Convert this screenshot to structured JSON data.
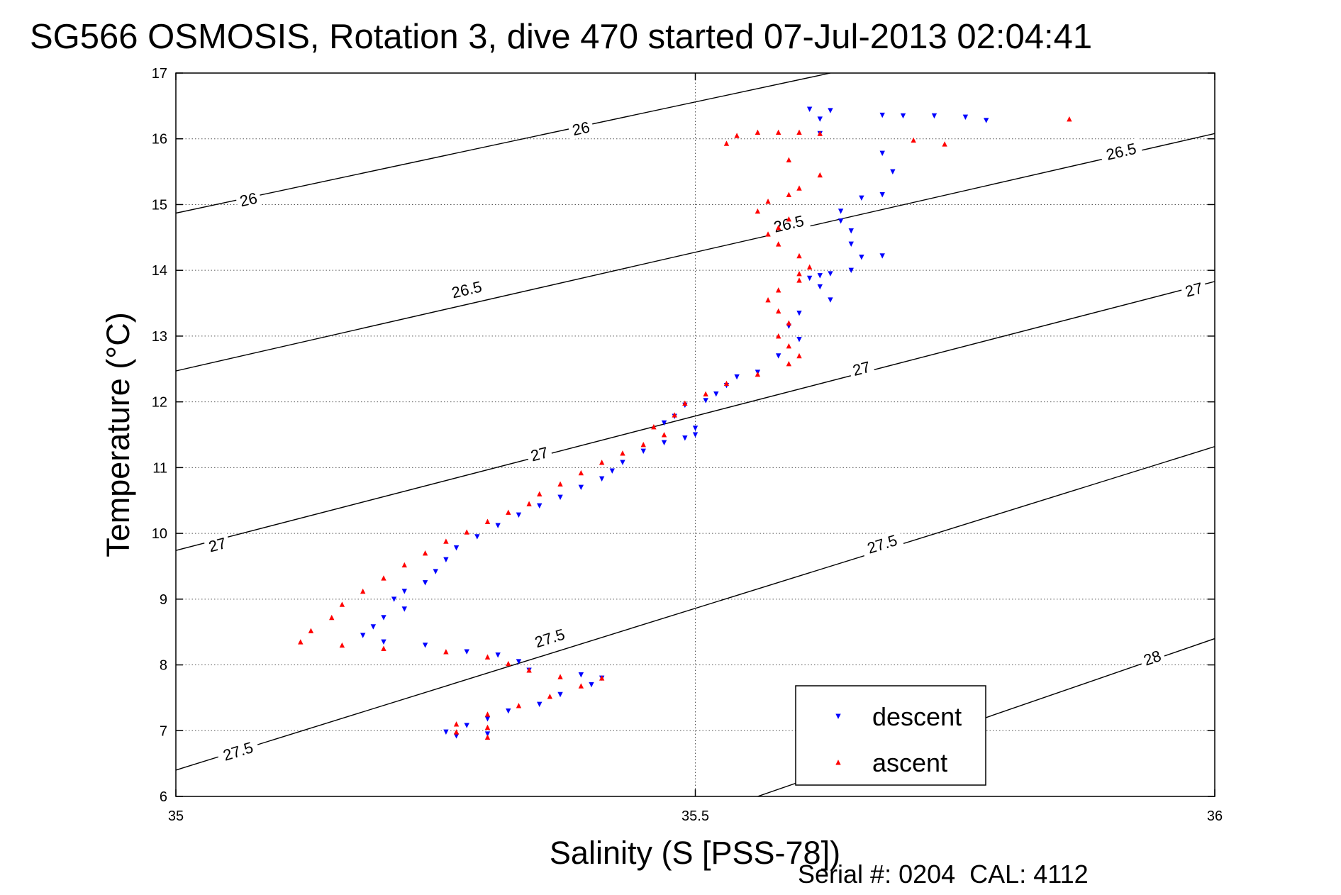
{
  "chart_data": {
    "type": "scatter",
    "title": "SG566 OSMOSIS, Rotation 3, dive 470 started 07-Jul-2013 02:04:41",
    "xlabel": "Salinity (S [PSS-78])",
    "ylabel": "Temperature (°C)",
    "xlim": [
      35,
      36
    ],
    "ylim": [
      6,
      17
    ],
    "x_ticks": [
      "35",
      "35.5",
      "36"
    ],
    "y_ticks": [
      "6",
      "7",
      "8",
      "9",
      "10",
      "11",
      "12",
      "13",
      "14",
      "15",
      "16",
      "17"
    ],
    "grid": "dotted",
    "legend_position": "bottom-right",
    "footer": "Serial #: 0204  CAL: 4112",
    "colors": {
      "descent": "#0000ff",
      "ascent": "#ff0000",
      "contour": "#000000"
    },
    "density_contours": [
      {
        "level": "26",
        "start": [
          35,
          14.87
        ],
        "end": [
          35.63,
          17.0
        ],
        "labels": [
          [
            35.07,
            15.07
          ],
          [
            35.39,
            16.15
          ]
        ]
      },
      {
        "level": "26.5",
        "start": [
          35,
          12.47
        ],
        "end": [
          36,
          16.08
        ],
        "labels": [
          [
            35.28,
            13.7
          ],
          [
            35.59,
            14.7
          ],
          [
            35.91,
            15.8
          ]
        ]
      },
      {
        "level": "27",
        "start": [
          35,
          9.74
        ],
        "end": [
          36,
          13.83
        ],
        "labels": [
          [
            35.04,
            9.82
          ],
          [
            35.35,
            11.2
          ],
          [
            35.66,
            12.5
          ],
          [
            35.98,
            13.7
          ]
        ]
      },
      {
        "level": "27.5",
        "start": [
          35,
          6.4
        ],
        "end": [
          36,
          11.32
        ],
        "labels": [
          [
            35.06,
            6.68
          ],
          [
            35.36,
            8.4
          ],
          [
            35.68,
            9.83
          ]
        ]
      },
      {
        "level": "28",
        "start": [
          35.56,
          6.0
        ],
        "end": [
          36,
          8.4
        ],
        "labels": [
          [
            35.94,
            8.1
          ]
        ]
      }
    ],
    "series": [
      {
        "name": "descent",
        "marker": "triangle-down",
        "points": [
          [
            35.61,
            16.45
          ],
          [
            35.63,
            16.43
          ],
          [
            35.62,
            16.3
          ],
          [
            35.68,
            16.36
          ],
          [
            35.7,
            16.35
          ],
          [
            35.73,
            16.35
          ],
          [
            35.76,
            16.33
          ],
          [
            35.78,
            16.28
          ],
          [
            35.62,
            16.08
          ],
          [
            35.68,
            15.78
          ],
          [
            35.69,
            15.5
          ],
          [
            35.68,
            15.15
          ],
          [
            35.66,
            15.1
          ],
          [
            35.64,
            14.9
          ],
          [
            35.64,
            14.75
          ],
          [
            35.65,
            14.6
          ],
          [
            35.65,
            14.4
          ],
          [
            35.66,
            14.2
          ],
          [
            35.68,
            14.22
          ],
          [
            35.65,
            14.0
          ],
          [
            35.63,
            13.95
          ],
          [
            35.62,
            13.92
          ],
          [
            35.61,
            13.88
          ],
          [
            35.62,
            13.75
          ],
          [
            35.63,
            13.55
          ],
          [
            35.6,
            13.35
          ],
          [
            35.59,
            13.15
          ],
          [
            35.6,
            12.95
          ],
          [
            35.58,
            12.7
          ],
          [
            35.56,
            12.45
          ],
          [
            35.54,
            12.38
          ],
          [
            35.53,
            12.25
          ],
          [
            35.52,
            12.12
          ],
          [
            35.51,
            12.02
          ],
          [
            35.49,
            11.95
          ],
          [
            35.48,
            11.78
          ],
          [
            35.47,
            11.68
          ],
          [
            35.5,
            11.6
          ],
          [
            35.5,
            11.5
          ],
          [
            35.49,
            11.45
          ],
          [
            35.47,
            11.38
          ],
          [
            35.45,
            11.25
          ],
          [
            35.43,
            11.08
          ],
          [
            35.42,
            10.95
          ],
          [
            35.41,
            10.83
          ],
          [
            35.39,
            10.7
          ],
          [
            35.37,
            10.55
          ],
          [
            35.35,
            10.42
          ],
          [
            35.33,
            10.28
          ],
          [
            35.31,
            10.12
          ],
          [
            35.29,
            9.95
          ],
          [
            35.27,
            9.78
          ],
          [
            35.26,
            9.6
          ],
          [
            35.25,
            9.42
          ],
          [
            35.24,
            9.25
          ],
          [
            35.22,
            9.12
          ],
          [
            35.21,
            9.0
          ],
          [
            35.22,
            8.85
          ],
          [
            35.2,
            8.72
          ],
          [
            35.19,
            8.58
          ],
          [
            35.18,
            8.45
          ],
          [
            35.2,
            8.35
          ],
          [
            35.24,
            8.3
          ],
          [
            35.28,
            8.2
          ],
          [
            35.31,
            8.15
          ],
          [
            35.33,
            8.05
          ],
          [
            35.34,
            7.92
          ],
          [
            35.39,
            7.85
          ],
          [
            35.41,
            7.8
          ],
          [
            35.4,
            7.7
          ],
          [
            35.37,
            7.55
          ],
          [
            35.35,
            7.4
          ],
          [
            35.32,
            7.3
          ],
          [
            35.3,
            7.18
          ],
          [
            35.28,
            7.08
          ],
          [
            35.26,
            6.98
          ],
          [
            35.3,
            6.95
          ],
          [
            35.27,
            6.92
          ]
        ]
      },
      {
        "name": "ascent",
        "marker": "triangle-up",
        "points": [
          [
            35.86,
            16.3
          ],
          [
            35.71,
            15.98
          ],
          [
            35.74,
            15.92
          ],
          [
            35.54,
            16.05
          ],
          [
            35.56,
            16.1
          ],
          [
            35.58,
            16.1
          ],
          [
            35.6,
            16.1
          ],
          [
            35.62,
            16.08
          ],
          [
            35.53,
            15.93
          ],
          [
            35.59,
            15.68
          ],
          [
            35.62,
            15.45
          ],
          [
            35.6,
            15.25
          ],
          [
            35.59,
            15.15
          ],
          [
            35.57,
            15.05
          ],
          [
            35.56,
            14.9
          ],
          [
            35.59,
            14.78
          ],
          [
            35.58,
            14.65
          ],
          [
            35.57,
            14.55
          ],
          [
            35.58,
            14.4
          ],
          [
            35.6,
            14.22
          ],
          [
            35.61,
            14.05
          ],
          [
            35.6,
            13.95
          ],
          [
            35.6,
            13.85
          ],
          [
            35.58,
            13.7
          ],
          [
            35.57,
            13.55
          ],
          [
            35.58,
            13.38
          ],
          [
            35.59,
            13.2
          ],
          [
            35.58,
            13.0
          ],
          [
            35.59,
            12.85
          ],
          [
            35.6,
            12.7
          ],
          [
            35.59,
            12.58
          ],
          [
            35.56,
            12.42
          ],
          [
            35.53,
            12.28
          ],
          [
            35.51,
            12.12
          ],
          [
            35.49,
            11.98
          ],
          [
            35.48,
            11.8
          ],
          [
            35.46,
            11.62
          ],
          [
            35.47,
            11.5
          ],
          [
            35.45,
            11.35
          ],
          [
            35.43,
            11.22
          ],
          [
            35.41,
            11.08
          ],
          [
            35.39,
            10.92
          ],
          [
            35.37,
            10.75
          ],
          [
            35.35,
            10.6
          ],
          [
            35.34,
            10.45
          ],
          [
            35.32,
            10.32
          ],
          [
            35.3,
            10.18
          ],
          [
            35.28,
            10.02
          ],
          [
            35.26,
            9.88
          ],
          [
            35.24,
            9.7
          ],
          [
            35.22,
            9.52
          ],
          [
            35.2,
            9.32
          ],
          [
            35.18,
            9.12
          ],
          [
            35.16,
            8.92
          ],
          [
            35.15,
            8.72
          ],
          [
            35.13,
            8.52
          ],
          [
            35.12,
            8.35
          ],
          [
            35.16,
            8.3
          ],
          [
            35.2,
            8.25
          ],
          [
            35.26,
            8.2
          ],
          [
            35.3,
            8.12
          ],
          [
            35.32,
            8.02
          ],
          [
            35.34,
            7.92
          ],
          [
            35.37,
            7.82
          ],
          [
            35.41,
            7.8
          ],
          [
            35.39,
            7.68
          ],
          [
            35.36,
            7.52
          ],
          [
            35.33,
            7.38
          ],
          [
            35.3,
            7.25
          ],
          [
            35.27,
            7.1
          ],
          [
            35.3,
            7.05
          ],
          [
            35.27,
            6.98
          ],
          [
            35.3,
            6.9
          ]
        ]
      }
    ]
  }
}
